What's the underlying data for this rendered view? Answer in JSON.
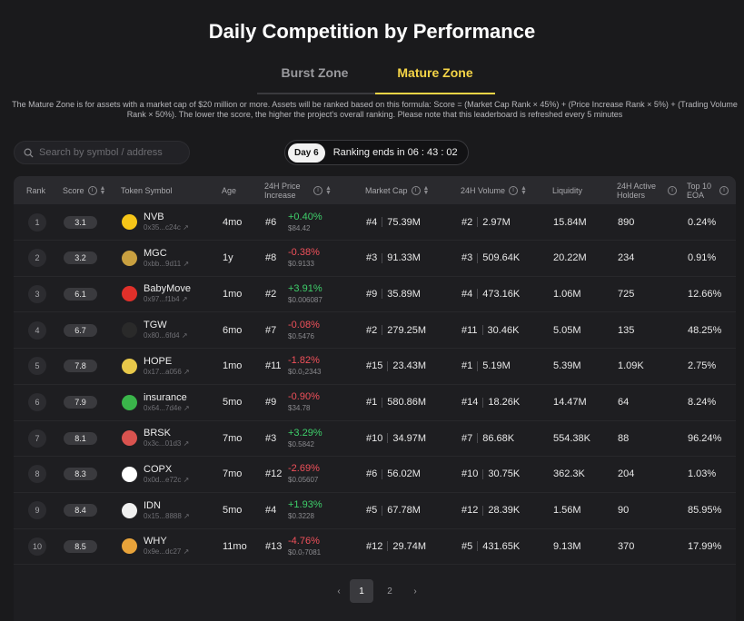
{
  "page": {
    "title": "Daily Competition by Performance"
  },
  "tabs": [
    {
      "label": "Burst Zone"
    },
    {
      "label": "Mature Zone"
    }
  ],
  "description": "The Mature Zone is for assets with a market cap of $20 million or more. Assets will be ranked based on this formula: Score = (Market Cap Rank × 45%) + (Price Increase Rank × 5%) + (Trading Volume Rank × 50%). The lower the score, the higher the project's overall ranking. Please note that this leaderboard is refreshed every 5 minutes",
  "search": {
    "placeholder": "Search by symbol / address",
    "icon": "search-icon"
  },
  "ranking": {
    "day": "Day 6",
    "text": "Ranking ends in 06 : 43 : 02"
  },
  "columns": {
    "rank": "Rank",
    "score": "Score",
    "token": "Token Symbol",
    "age": "Age",
    "price_increase": "24H Price Increase",
    "market_cap": "Market Cap",
    "volume": "24H Volume",
    "liquidity": "Liquidity",
    "holders": "24H Active Holders",
    "eoa": "Top 10 EOA"
  },
  "rows": [
    {
      "rank": "1",
      "score": "3.1",
      "symbol": "NVB",
      "addr": "0x35...c24c",
      "age": "4mo",
      "price_rank": "#6",
      "change": "+0.40%",
      "dir": "up",
      "price": "$84.42",
      "mc_rank": "#4",
      "mc": "75.39M",
      "vol_rank": "#2",
      "vol": "2.97M",
      "liquidity": "15.84M",
      "holders": "890",
      "eoa": "0.24%",
      "logo_color": "#f5c518"
    },
    {
      "rank": "2",
      "score": "3.2",
      "symbol": "MGC",
      "addr": "0xbb...9d11",
      "age": "1y",
      "price_rank": "#8",
      "change": "-0.38%",
      "dir": "down",
      "price": "$0.9133",
      "mc_rank": "#3",
      "mc": "91.33M",
      "vol_rank": "#3",
      "vol": "509.64K",
      "liquidity": "20.22M",
      "holders": "234",
      "eoa": "0.91%",
      "logo_color": "#c9a040"
    },
    {
      "rank": "3",
      "score": "6.1",
      "symbol": "BabyMove",
      "addr": "0x97...f1b4",
      "age": "1mo",
      "price_rank": "#2",
      "change": "+3.91%",
      "dir": "up",
      "price": "$0.006087",
      "mc_rank": "#9",
      "mc": "35.89M",
      "vol_rank": "#4",
      "vol": "473.16K",
      "liquidity": "1.06M",
      "holders": "725",
      "eoa": "12.66%",
      "logo_color": "#e0302a"
    },
    {
      "rank": "4",
      "score": "6.7",
      "symbol": "TGW",
      "addr": "0x80...6fd4",
      "age": "6mo",
      "price_rank": "#7",
      "change": "-0.08%",
      "dir": "down",
      "price": "$0.5476",
      "mc_rank": "#2",
      "mc": "279.25M",
      "vol_rank": "#11",
      "vol": "30.46K",
      "liquidity": "5.05M",
      "holders": "135",
      "eoa": "48.25%",
      "logo_color": "#2a2a2a"
    },
    {
      "rank": "5",
      "score": "7.8",
      "symbol": "HOPE",
      "addr": "0x17...a056",
      "age": "1mo",
      "price_rank": "#11",
      "change": "-1.82%",
      "dir": "down",
      "price": "$0.0₂2343",
      "mc_rank": "#15",
      "mc": "23.43M",
      "vol_rank": "#1",
      "vol": "5.19M",
      "liquidity": "5.39M",
      "holders": "1.09K",
      "eoa": "2.75%",
      "logo_color": "#e8c84a"
    },
    {
      "rank": "6",
      "score": "7.9",
      "symbol": "insurance",
      "addr": "0x64...7d4e",
      "age": "5mo",
      "price_rank": "#9",
      "change": "-0.90%",
      "dir": "down",
      "price": "$34.78",
      "mc_rank": "#1",
      "mc": "580.86M",
      "vol_rank": "#14",
      "vol": "18.26K",
      "liquidity": "14.47M",
      "holders": "64",
      "eoa": "8.24%",
      "logo_color": "#3ab54a"
    },
    {
      "rank": "7",
      "score": "8.1",
      "symbol": "BRSK",
      "addr": "0x3c...01d3",
      "age": "7mo",
      "price_rank": "#3",
      "change": "+3.29%",
      "dir": "up",
      "price": "$0.5842",
      "mc_rank": "#10",
      "mc": "34.97M",
      "vol_rank": "#7",
      "vol": "86.68K",
      "liquidity": "554.38K",
      "holders": "88",
      "eoa": "96.24%",
      "logo_color": "#d9534f"
    },
    {
      "rank": "8",
      "score": "8.3",
      "symbol": "COPX",
      "addr": "0x0d...e72c",
      "age": "7mo",
      "price_rank": "#12",
      "change": "-2.69%",
      "dir": "down",
      "price": "$0.05607",
      "mc_rank": "#6",
      "mc": "56.02M",
      "vol_rank": "#10",
      "vol": "30.75K",
      "liquidity": "362.3K",
      "holders": "204",
      "eoa": "1.03%",
      "logo_color": "#ffffff"
    },
    {
      "rank": "9",
      "score": "8.4",
      "symbol": "IDN",
      "addr": "0x15...8888",
      "age": "5mo",
      "price_rank": "#4",
      "change": "+1.93%",
      "dir": "up",
      "price": "$0.3228",
      "mc_rank": "#5",
      "mc": "67.78M",
      "vol_rank": "#12",
      "vol": "28.39K",
      "liquidity": "1.56M",
      "holders": "90",
      "eoa": "85.95%",
      "logo_color": "#f0f0f0"
    },
    {
      "rank": "10",
      "score": "8.5",
      "symbol": "WHY",
      "addr": "0x9e...dc27",
      "age": "11mo",
      "price_rank": "#13",
      "change": "-4.76%",
      "dir": "down",
      "price": "$0.0₇7081",
      "mc_rank": "#12",
      "mc": "29.74M",
      "vol_rank": "#5",
      "vol": "431.65K",
      "liquidity": "9.13M",
      "holders": "370",
      "eoa": "17.99%",
      "logo_color": "#e8a33a"
    }
  ],
  "pagination": {
    "prev": "‹",
    "pages": [
      "1",
      "2"
    ],
    "next": "›",
    "current": "1"
  },
  "colors": {
    "accent": "#f5d547",
    "up": "#3ecf6a",
    "down": "#f0505a"
  }
}
